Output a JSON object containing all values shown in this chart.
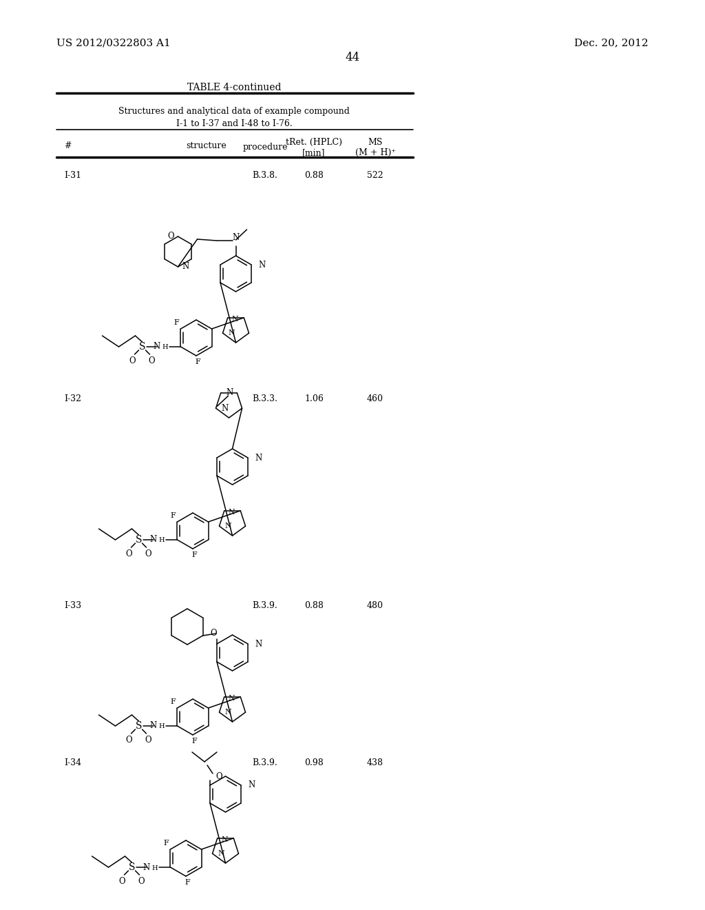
{
  "page_header_left": "US 2012/0322803 A1",
  "page_header_right": "Dec. 20, 2012",
  "page_number": "44",
  "table_title": "TABLE 4-continued",
  "table_subtitle1": "Structures and analytical data of example compound",
  "table_subtitle2": "I-1 to I-37 and I-48 to I-76.",
  "rows": [
    {
      "id": "I-31",
      "procedure": "B.3.8.",
      "tret": "0.88",
      "ms": "522"
    },
    {
      "id": "I-32",
      "procedure": "B.3.3.",
      "tret": "1.06",
      "ms": "460"
    },
    {
      "id": "I-33",
      "procedure": "B.3.9.",
      "tret": "0.88",
      "ms": "480"
    },
    {
      "id": "I-34",
      "procedure": "B.3.9.",
      "tret": "0.98",
      "ms": "438"
    }
  ],
  "bg_color": "#ffffff",
  "text_color": "#000000",
  "line_color": "#000000"
}
